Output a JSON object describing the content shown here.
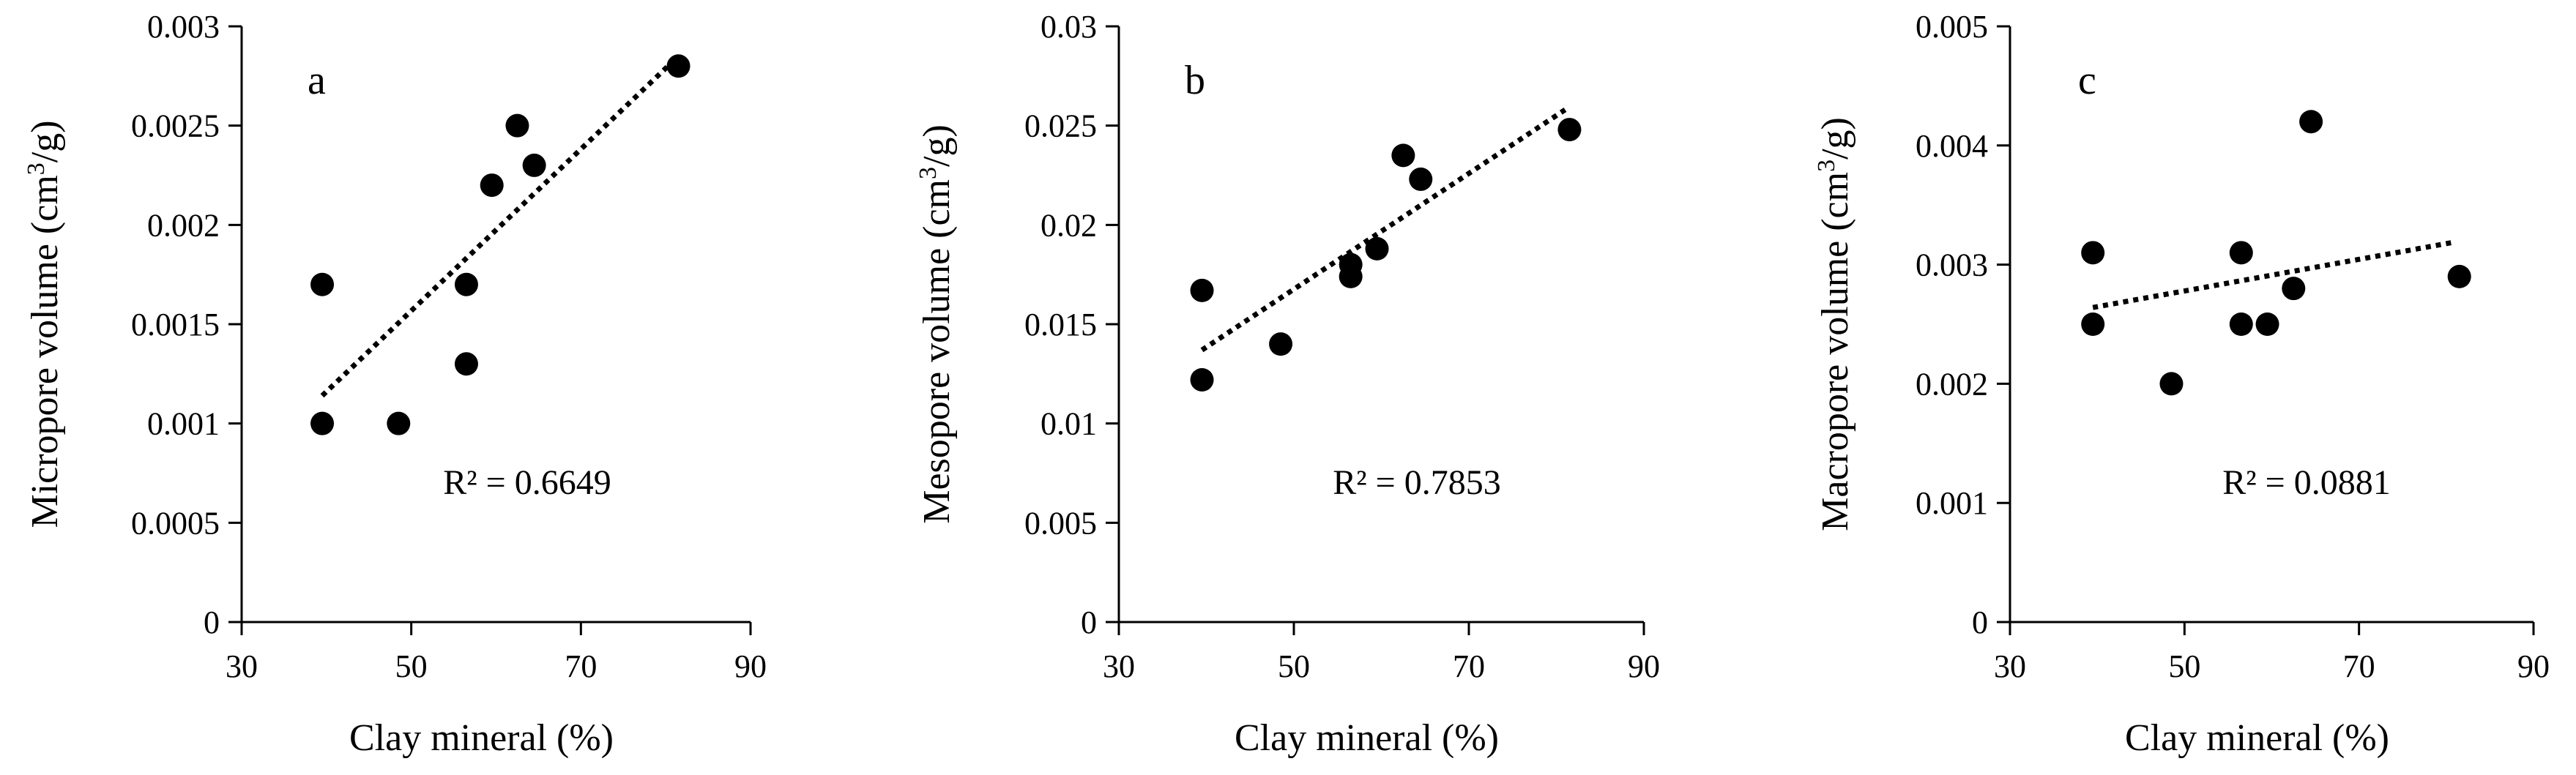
{
  "colors": {
    "ink": "#000000",
    "background": "#ffffff"
  },
  "chart_data": [
    {
      "type": "scatter",
      "panel_label": "a",
      "xlabel": "Clay mineral (%)",
      "ylabel": {
        "prefix": "Micropore volume (cm",
        "superscript": "3",
        "suffix": "/g)"
      },
      "xlim": [
        30,
        90
      ],
      "ylim": [
        0,
        0.003
      ],
      "xticks": [
        30,
        50,
        70,
        90
      ],
      "xtick_labels": [
        "30",
        "50",
        "70",
        "90"
      ],
      "yticks": [
        0,
        0.0005,
        0.001,
        0.0015,
        0.002,
        0.0025,
        0.003
      ],
      "ytick_labels": [
        "0",
        "0.0005",
        "0.001",
        "0.0015",
        "0.002",
        "0.0025",
        "0.003"
      ],
      "points": [
        {
          "x": 39.5,
          "y": 0.0017
        },
        {
          "x": 39.5,
          "y": 0.001
        },
        {
          "x": 48.5,
          "y": 0.001
        },
        {
          "x": 56.5,
          "y": 0.0013
        },
        {
          "x": 56.5,
          "y": 0.0017
        },
        {
          "x": 59.5,
          "y": 0.0022
        },
        {
          "x": 62.5,
          "y": 0.0025
        },
        {
          "x": 64.5,
          "y": 0.0023
        },
        {
          "x": 81.5,
          "y": 0.0028
        }
      ],
      "trendline": {
        "style": "dotted",
        "x": [
          39.5,
          81.5
        ],
        "y": [
          0.00114,
          0.00285
        ]
      },
      "r2_text": "R² = 0.6649",
      "grid": false
    },
    {
      "type": "scatter",
      "panel_label": "b",
      "xlabel": "Clay mineral (%)",
      "ylabel": {
        "prefix": "Mesopore volume (cm",
        "superscript": "3",
        "suffix": "/g)"
      },
      "xlim": [
        30,
        90
      ],
      "ylim": [
        0,
        0.03
      ],
      "xticks": [
        30,
        50,
        70,
        90
      ],
      "xtick_labels": [
        "30",
        "50",
        "70",
        "90"
      ],
      "yticks": [
        0,
        0.005,
        0.01,
        0.015,
        0.02,
        0.025,
        0.03
      ],
      "ytick_labels": [
        "0",
        "0.005",
        "0.01",
        "0.015",
        "0.02",
        "0.025",
        "0.03"
      ],
      "points": [
        {
          "x": 39.5,
          "y": 0.0167
        },
        {
          "x": 39.5,
          "y": 0.0122
        },
        {
          "x": 48.5,
          "y": 0.014
        },
        {
          "x": 56.5,
          "y": 0.0174
        },
        {
          "x": 56.5,
          "y": 0.018
        },
        {
          "x": 59.5,
          "y": 0.0188
        },
        {
          "x": 62.5,
          "y": 0.0235
        },
        {
          "x": 64.5,
          "y": 0.0223
        },
        {
          "x": 81.5,
          "y": 0.0248
        }
      ],
      "trendline": {
        "style": "dotted",
        "x": [
          39.5,
          81
        ],
        "y": [
          0.0137,
          0.0258
        ]
      },
      "r2_text": "R² = 0.7853",
      "grid": false
    },
    {
      "type": "scatter",
      "panel_label": "c",
      "xlabel": "Clay mineral (%)",
      "ylabel": {
        "prefix": "Macropore volume (cm",
        "superscript": "3",
        "suffix": "/g)"
      },
      "xlim": [
        30,
        90
      ],
      "ylim": [
        0,
        0.005
      ],
      "xticks": [
        30,
        50,
        70,
        90
      ],
      "xtick_labels": [
        "30",
        "50",
        "70",
        "90"
      ],
      "yticks": [
        0,
        0.001,
        0.002,
        0.003,
        0.004,
        0.005
      ],
      "ytick_labels": [
        "0",
        "0.001",
        "0.002",
        "0.003",
        "0.004",
        "0.005"
      ],
      "points": [
        {
          "x": 39.5,
          "y": 0.0031
        },
        {
          "x": 39.5,
          "y": 0.0025
        },
        {
          "x": 48.5,
          "y": 0.002
        },
        {
          "x": 56.5,
          "y": 0.0031
        },
        {
          "x": 56.5,
          "y": 0.0025
        },
        {
          "x": 59.5,
          "y": 0.0025
        },
        {
          "x": 62.5,
          "y": 0.0028
        },
        {
          "x": 64.5,
          "y": 0.0042
        },
        {
          "x": 81.5,
          "y": 0.0029
        }
      ],
      "trendline": {
        "style": "dotted",
        "x": [
          39.5,
          81
        ],
        "y": [
          0.00264,
          0.00319
        ]
      },
      "r2_text": "R² = 0.0881",
      "grid": false
    }
  ]
}
